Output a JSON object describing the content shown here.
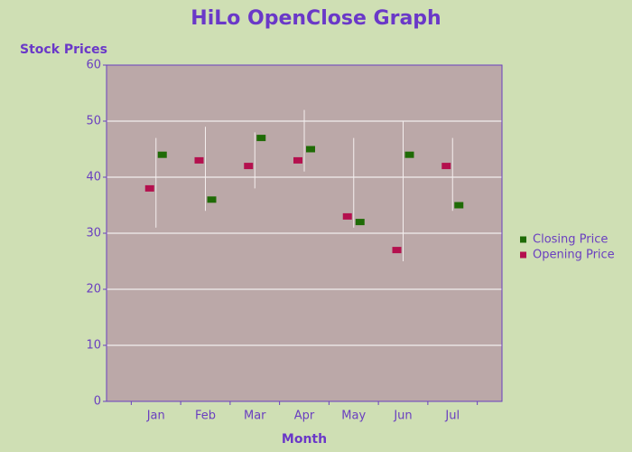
{
  "chart_data": {
    "type": "hilo",
    "title": "HiLo OpenClose Graph",
    "y_label": "Stock Prices",
    "x_label": "Month",
    "categories": [
      "Jan",
      "Feb",
      "Mar",
      "Apr",
      "May",
      "Jun",
      "Jul"
    ],
    "high": [
      47,
      49,
      48,
      52,
      47,
      50,
      47
    ],
    "low": [
      31,
      34,
      38,
      41,
      31,
      25,
      34
    ],
    "series": [
      {
        "name": "Closing Price",
        "color": "#1f6b06",
        "values": [
          44,
          36,
          47,
          45,
          32,
          44,
          35
        ]
      },
      {
        "name": "Opening Price",
        "color": "#b4104e",
        "values": [
          38,
          43,
          42,
          43,
          33,
          27,
          42
        ]
      }
    ],
    "ylim": [
      0,
      60
    ],
    "yticks": [
      0,
      10,
      20,
      30,
      40,
      50,
      60
    ],
    "grid": true,
    "legend": "right"
  }
}
